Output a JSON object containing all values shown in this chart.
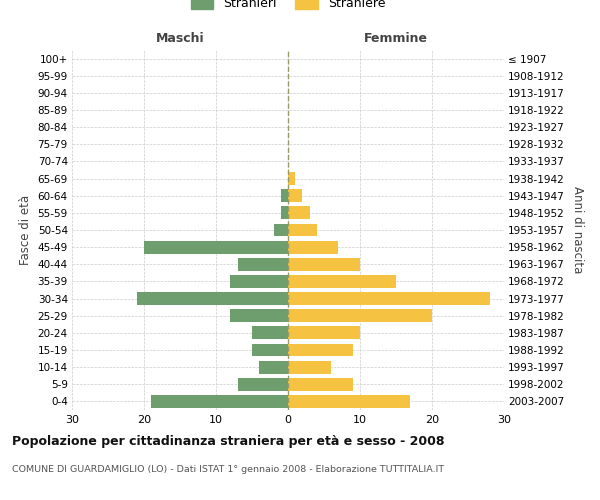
{
  "age_groups": [
    "0-4",
    "5-9",
    "10-14",
    "15-19",
    "20-24",
    "25-29",
    "30-34",
    "35-39",
    "40-44",
    "45-49",
    "50-54",
    "55-59",
    "60-64",
    "65-69",
    "70-74",
    "75-79",
    "80-84",
    "85-89",
    "90-94",
    "95-99",
    "100+"
  ],
  "birth_years": [
    "2003-2007",
    "1998-2002",
    "1993-1997",
    "1988-1992",
    "1983-1987",
    "1978-1982",
    "1973-1977",
    "1968-1972",
    "1963-1967",
    "1958-1962",
    "1953-1957",
    "1948-1952",
    "1943-1947",
    "1938-1942",
    "1933-1937",
    "1928-1932",
    "1923-1927",
    "1918-1922",
    "1913-1917",
    "1908-1912",
    "≤ 1907"
  ],
  "males": [
    19,
    7,
    4,
    5,
    5,
    8,
    21,
    8,
    7,
    20,
    2,
    1,
    1,
    0,
    0,
    0,
    0,
    0,
    0,
    0,
    0
  ],
  "females": [
    17,
    9,
    6,
    9,
    10,
    20,
    28,
    15,
    10,
    7,
    4,
    3,
    2,
    1,
    0,
    0,
    0,
    0,
    0,
    0,
    0
  ],
  "male_color": "#6e9e6e",
  "female_color": "#f5c242",
  "title": "Popolazione per cittadinanza straniera per età e sesso - 2008",
  "subtitle": "COMUNE DI GUARDAMIGLIO (LO) - Dati ISTAT 1° gennaio 2008 - Elaborazione TUTTITALIA.IT",
  "xlabel_left": "Maschi",
  "xlabel_right": "Femmine",
  "ylabel_left": "Fasce di età",
  "ylabel_right": "Anni di nascita",
  "legend_males": "Stranieri",
  "legend_females": "Straniere",
  "xlim": 30,
  "xticks": [
    -30,
    -20,
    -10,
    0,
    10,
    20,
    30
  ],
  "background_color": "#ffffff",
  "grid_color": "#cccccc"
}
